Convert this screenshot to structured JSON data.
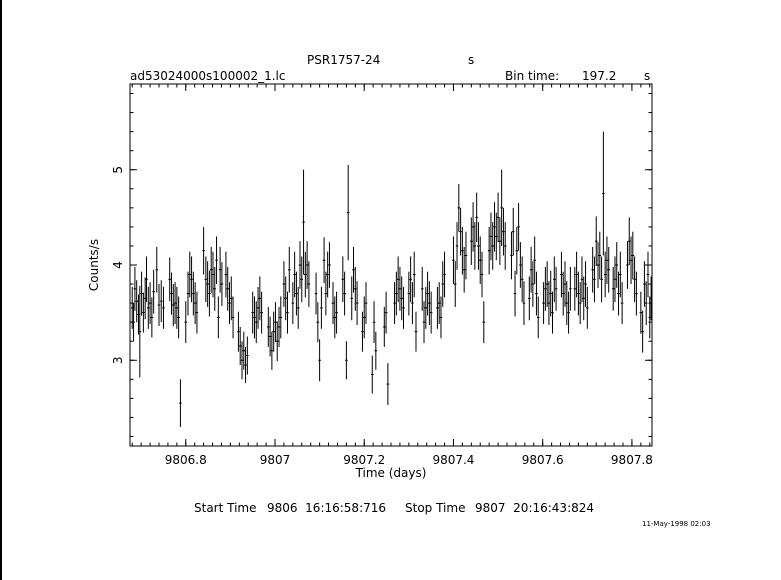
{
  "header": {
    "object": "PSR1757-24",
    "object_unit": "s",
    "filename": "ad53024000s100002_1.lc",
    "bin_time_label": "Bin time:",
    "bin_time_value": "197.2",
    "bin_time_unit": "s"
  },
  "footer": {
    "start_label": "Start Time",
    "start_value": "9806  16:16:58:716",
    "stop_label": "Stop Time",
    "stop_value": "9807  20:16:43:824",
    "stamp": "11-May-1998 02:03"
  },
  "chart_data": {
    "type": "line",
    "title": "",
    "xlabel": "Time (days)",
    "ylabel": "Counts/s",
    "xlim": [
      9806.675,
      9807.845
    ],
    "ylim": [
      2.1,
      5.9
    ],
    "x_ticks": [
      9806.8,
      9807,
      9807.2,
      9807.4,
      9807.6,
      9807.8
    ],
    "x_tick_labels": [
      "9806.8",
      "9807",
      "9807.2",
      "9807.4",
      "9807.6",
      "9807.8"
    ],
    "y_ticks": [
      3,
      4,
      5
    ],
    "y_tick_labels": [
      "3",
      "4",
      "5"
    ],
    "grid": false,
    "series": [
      {
        "style": "vertical error bars",
        "points": [
          [
            9806.68,
            3.55,
            0.22
          ],
          [
            9806.683,
            3.4,
            0.2
          ],
          [
            9806.686,
            3.75,
            0.23
          ],
          [
            9806.69,
            3.62,
            0.22
          ],
          [
            9806.694,
            3.48,
            0.21
          ],
          [
            9806.697,
            3.3,
            0.48
          ],
          [
            9806.701,
            3.7,
            0.23
          ],
          [
            9806.705,
            3.5,
            0.21
          ],
          [
            9806.709,
            3.65,
            0.22
          ],
          [
            9806.712,
            3.85,
            0.24
          ],
          [
            9806.716,
            3.55,
            0.22
          ],
          [
            9806.72,
            3.6,
            0.22
          ],
          [
            9806.724,
            3.45,
            0.21
          ],
          [
            9806.728,
            3.72,
            0.23
          ],
          [
            9806.735,
            3.95,
            0.24
          ],
          [
            9806.74,
            3.58,
            0.22
          ],
          [
            9806.745,
            3.62,
            0.22
          ],
          [
            9806.75,
            3.55,
            0.22
          ],
          [
            9806.764,
            3.85,
            0.23
          ],
          [
            9806.768,
            3.7,
            0.22
          ],
          [
            9806.772,
            3.58,
            0.22
          ],
          [
            9806.776,
            3.6,
            0.22
          ],
          [
            9806.78,
            3.55,
            0.22
          ],
          [
            9806.784,
            3.45,
            0.22
          ],
          [
            9806.788,
            2.55,
            0.25
          ],
          [
            9806.8,
            3.4,
            0.22
          ],
          [
            9806.805,
            3.7,
            0.23
          ],
          [
            9806.809,
            3.9,
            0.24
          ],
          [
            9806.813,
            3.85,
            0.24
          ],
          [
            9806.817,
            3.7,
            0.23
          ],
          [
            9806.821,
            3.6,
            0.22
          ],
          [
            9806.825,
            3.5,
            0.22
          ],
          [
            9806.84,
            4.15,
            0.25
          ],
          [
            9806.845,
            3.85,
            0.24
          ],
          [
            9806.849,
            3.8,
            0.24
          ],
          [
            9806.853,
            3.7,
            0.24
          ],
          [
            9806.857,
            3.95,
            0.24
          ],
          [
            9806.861,
            3.9,
            0.24
          ],
          [
            9806.865,
            3.75,
            0.23
          ],
          [
            9806.869,
            4.05,
            0.25
          ],
          [
            9806.873,
            3.45,
            0.22
          ],
          [
            9806.877,
            3.95,
            0.24
          ],
          [
            9806.881,
            3.8,
            0.23
          ],
          [
            9806.89,
            3.9,
            0.24
          ],
          [
            9806.894,
            3.75,
            0.23
          ],
          [
            9806.898,
            3.6,
            0.22
          ],
          [
            9806.902,
            3.65,
            0.23
          ],
          [
            9806.906,
            3.45,
            0.22
          ],
          [
            9806.918,
            3.3,
            0.21
          ],
          [
            9806.922,
            3.15,
            0.2
          ],
          [
            9806.926,
            3.0,
            0.2
          ],
          [
            9806.93,
            3.1,
            0.2
          ],
          [
            9806.934,
            2.95,
            0.19
          ],
          [
            9806.938,
            3.05,
            0.2
          ],
          [
            9806.95,
            3.5,
            0.22
          ],
          [
            9806.954,
            3.45,
            0.22
          ],
          [
            9806.958,
            3.4,
            0.22
          ],
          [
            9806.962,
            3.55,
            0.22
          ],
          [
            9806.966,
            3.65,
            0.23
          ],
          [
            9806.97,
            3.5,
            0.22
          ],
          [
            9806.985,
            3.35,
            0.21
          ],
          [
            9806.989,
            3.25,
            0.21
          ],
          [
            9806.993,
            3.1,
            0.2
          ],
          [
            9806.997,
            3.3,
            0.21
          ],
          [
            9807.001,
            3.4,
            0.21
          ],
          [
            9807.005,
            3.2,
            0.21
          ],
          [
            9807.009,
            3.35,
            0.21
          ],
          [
            9807.013,
            3.45,
            0.22
          ],
          [
            9807.02,
            3.8,
            0.24
          ],
          [
            9807.024,
            3.65,
            0.23
          ],
          [
            9807.028,
            3.5,
            0.22
          ],
          [
            9807.032,
            3.95,
            0.24
          ],
          [
            9807.04,
            3.6,
            0.22
          ],
          [
            9807.044,
            3.9,
            0.24
          ],
          [
            9807.048,
            3.7,
            0.23
          ],
          [
            9807.052,
            3.55,
            0.22
          ],
          [
            9807.056,
            4.0,
            0.25
          ],
          [
            9807.06,
            3.85,
            0.24
          ],
          [
            9807.064,
            4.45,
            0.55
          ],
          [
            9807.068,
            3.9,
            0.24
          ],
          [
            9807.072,
            4.0,
            0.25
          ],
          [
            9807.076,
            3.8,
            0.24
          ],
          [
            9807.092,
            3.7,
            0.22
          ],
          [
            9807.096,
            3.4,
            0.21
          ],
          [
            9807.1,
            3.0,
            0.22
          ],
          [
            9807.104,
            3.55,
            0.22
          ],
          [
            9807.11,
            4.05,
            0.24
          ],
          [
            9807.114,
            3.7,
            0.23
          ],
          [
            9807.118,
            3.9,
            0.24
          ],
          [
            9807.122,
            4.0,
            0.24
          ],
          [
            9807.13,
            3.6,
            0.22
          ],
          [
            9807.134,
            3.45,
            0.22
          ],
          [
            9807.138,
            3.5,
            0.22
          ],
          [
            9807.152,
            3.85,
            0.24
          ],
          [
            9807.156,
            3.7,
            0.23
          ],
          [
            9807.16,
            3.0,
            0.2
          ],
          [
            9807.164,
            4.55,
            0.5
          ],
          [
            9807.172,
            3.65,
            0.23
          ],
          [
            9807.176,
            3.95,
            0.24
          ],
          [
            9807.18,
            3.75,
            0.23
          ],
          [
            9807.184,
            3.6,
            0.23
          ],
          [
            9807.196,
            3.3,
            0.21
          ],
          [
            9807.2,
            3.45,
            0.22
          ],
          [
            9807.204,
            3.6,
            0.22
          ],
          [
            9807.218,
            2.85,
            0.2
          ],
          [
            9807.222,
            3.4,
            0.22
          ],
          [
            9807.226,
            3.1,
            0.2
          ],
          [
            9807.245,
            3.35,
            0.21
          ],
          [
            9807.249,
            3.5,
            0.22
          ],
          [
            9807.253,
            2.75,
            0.22
          ],
          [
            9807.268,
            3.6,
            0.22
          ],
          [
            9807.272,
            3.7,
            0.23
          ],
          [
            9807.276,
            3.85,
            0.24
          ],
          [
            9807.28,
            3.75,
            0.23
          ],
          [
            9807.284,
            3.65,
            0.23
          ],
          [
            9807.288,
            3.55,
            0.22
          ],
          [
            9807.3,
            3.7,
            0.23
          ],
          [
            9807.304,
            3.85,
            0.24
          ],
          [
            9807.308,
            3.6,
            0.22
          ],
          [
            9807.312,
            3.9,
            0.24
          ],
          [
            9807.316,
            3.3,
            0.21
          ],
          [
            9807.33,
            3.75,
            0.23
          ],
          [
            9807.334,
            3.4,
            0.22
          ],
          [
            9807.338,
            3.55,
            0.22
          ],
          [
            9807.342,
            3.7,
            0.23
          ],
          [
            9807.346,
            3.6,
            0.23
          ],
          [
            9807.35,
            3.5,
            0.22
          ],
          [
            9807.364,
            3.55,
            0.22
          ],
          [
            9807.368,
            3.6,
            0.22
          ],
          [
            9807.372,
            3.45,
            0.22
          ],
          [
            9807.376,
            3.8,
            0.24
          ],
          [
            9807.38,
            3.9,
            0.24
          ],
          [
            9807.4,
            4.05,
            0.25
          ],
          [
            9807.404,
            3.8,
            0.24
          ],
          [
            9807.408,
            4.2,
            0.25
          ],
          [
            9807.412,
            4.6,
            0.25
          ],
          [
            9807.416,
            4.35,
            0.25
          ],
          [
            9807.42,
            4.15,
            0.25
          ],
          [
            9807.424,
            3.95,
            0.24
          ],
          [
            9807.428,
            4.1,
            0.25
          ],
          [
            9807.44,
            4.25,
            0.25
          ],
          [
            9807.444,
            4.4,
            0.26
          ],
          [
            9807.448,
            4.2,
            0.25
          ],
          [
            9807.452,
            4.5,
            0.26
          ],
          [
            9807.456,
            4.2,
            0.25
          ],
          [
            9807.46,
            4.05,
            0.25
          ],
          [
            9807.464,
            3.9,
            0.24
          ],
          [
            9807.468,
            3.4,
            0.22
          ],
          [
            9807.48,
            4.15,
            0.25
          ],
          [
            9807.484,
            4.3,
            0.25
          ],
          [
            9807.488,
            4.2,
            0.25
          ],
          [
            9807.492,
            4.4,
            0.26
          ],
          [
            9807.496,
            4.3,
            0.25
          ],
          [
            9807.5,
            4.5,
            0.26
          ],
          [
            9807.504,
            4.25,
            0.25
          ],
          [
            9807.508,
            4.6,
            0.4
          ],
          [
            9807.512,
            4.35,
            0.25
          ],
          [
            9807.516,
            4.2,
            0.25
          ],
          [
            9807.53,
            4.1,
            0.25
          ],
          [
            9807.534,
            4.35,
            0.25
          ],
          [
            9807.538,
            3.7,
            0.24
          ],
          [
            9807.542,
            4.15,
            0.25
          ],
          [
            9807.546,
            4.4,
            0.25
          ],
          [
            9807.55,
            4.0,
            0.24
          ],
          [
            9807.554,
            3.85,
            0.24
          ],
          [
            9807.558,
            3.6,
            0.23
          ],
          [
            9807.57,
            3.65,
            0.23
          ],
          [
            9807.574,
            3.95,
            0.24
          ],
          [
            9807.578,
            3.8,
            0.24
          ],
          [
            9807.582,
            4.05,
            0.25
          ],
          [
            9807.586,
            3.7,
            0.23
          ],
          [
            9807.59,
            3.45,
            0.22
          ],
          [
            9807.602,
            3.6,
            0.22
          ],
          [
            9807.606,
            3.75,
            0.23
          ],
          [
            9807.61,
            3.8,
            0.24
          ],
          [
            9807.614,
            3.6,
            0.23
          ],
          [
            9807.618,
            3.7,
            0.24
          ],
          [
            9807.622,
            3.5,
            0.22
          ],
          [
            9807.626,
            3.85,
            0.24
          ],
          [
            9807.63,
            3.75,
            0.23
          ],
          [
            9807.642,
            3.9,
            0.24
          ],
          [
            9807.646,
            3.7,
            0.23
          ],
          [
            9807.65,
            3.8,
            0.24
          ],
          [
            9807.654,
            3.6,
            0.23
          ],
          [
            9807.658,
            3.5,
            0.22
          ],
          [
            9807.662,
            3.75,
            0.23
          ],
          [
            9807.672,
            3.75,
            0.23
          ],
          [
            9807.676,
            3.9,
            0.24
          ],
          [
            9807.68,
            3.7,
            0.23
          ],
          [
            9807.684,
            3.6,
            0.22
          ],
          [
            9807.688,
            3.85,
            0.24
          ],
          [
            9807.692,
            3.65,
            0.23
          ],
          [
            9807.696,
            3.8,
            0.24
          ],
          [
            9807.7,
            3.55,
            0.22
          ],
          [
            9807.712,
            3.95,
            0.24
          ],
          [
            9807.716,
            3.85,
            0.24
          ],
          [
            9807.72,
            4.25,
            0.26
          ],
          [
            9807.724,
            4.0,
            0.24
          ],
          [
            9807.728,
            4.1,
            0.25
          ],
          [
            9807.732,
            3.85,
            0.24
          ],
          [
            9807.736,
            4.75,
            0.65
          ],
          [
            9807.74,
            3.9,
            0.24
          ],
          [
            9807.744,
            4.05,
            0.25
          ],
          [
            9807.748,
            3.95,
            0.24
          ],
          [
            9807.758,
            3.75,
            0.23
          ],
          [
            9807.762,
            3.85,
            0.24
          ],
          [
            9807.766,
            4.0,
            0.24
          ],
          [
            9807.77,
            3.7,
            0.23
          ],
          [
            9807.774,
            3.9,
            0.24
          ],
          [
            9807.778,
            3.6,
            0.22
          ],
          [
            9807.79,
            4.0,
            0.25
          ],
          [
            9807.794,
            4.25,
            0.25
          ],
          [
            9807.798,
            4.05,
            0.25
          ],
          [
            9807.802,
            4.1,
            0.25
          ],
          [
            9807.806,
            3.85,
            0.24
          ],
          [
            9807.81,
            3.7,
            0.23
          ],
          [
            9807.82,
            3.5,
            0.22
          ],
          [
            9807.824,
            3.3,
            0.22
          ],
          [
            9807.828,
            3.8,
            0.24
          ],
          [
            9807.832,
            3.6,
            0.23
          ],
          [
            9807.836,
            3.9,
            0.24
          ],
          [
            9807.84,
            3.45,
            0.22
          ],
          [
            9807.843,
            3.65,
            0.23
          ]
        ]
      }
    ]
  }
}
